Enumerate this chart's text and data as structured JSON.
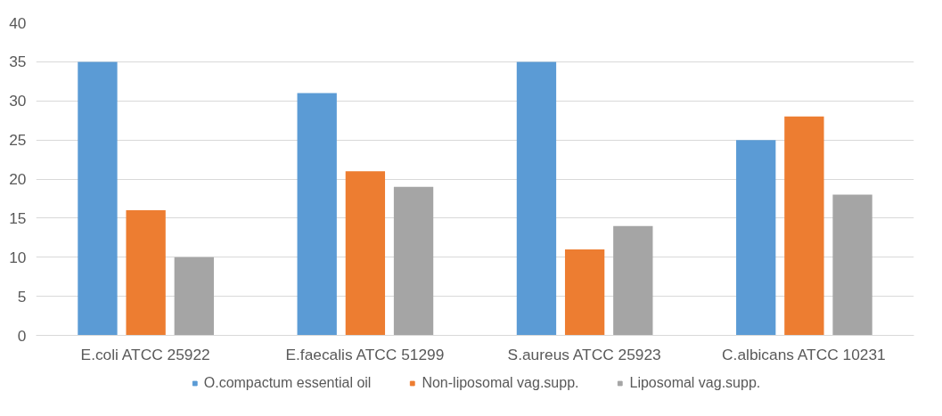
{
  "chart_data": {
    "type": "bar",
    "categories": [
      "E.coli ATCC 25922",
      "E.faecalis ATCC 51299",
      "S.aureus ATCC 25923",
      "C.albicans ATCC 10231"
    ],
    "series": [
      {
        "name": "O.compactum essential oil",
        "color": "#5b9bd5",
        "values": [
          35,
          31,
          35,
          25
        ]
      },
      {
        "name": "Non-liposomal vag.supp.",
        "color": "#ed7d31",
        "values": [
          16,
          21,
          11,
          28
        ]
      },
      {
        "name": "Liposomal vag.supp.",
        "color": "#a5a5a5",
        "values": [
          10,
          19,
          14,
          18
        ]
      }
    ],
    "ylim": [
      0,
      40
    ],
    "yticks": [
      0,
      5,
      10,
      15,
      20,
      25,
      30,
      35,
      40
    ],
    "grid": "y",
    "legend": "bottom"
  }
}
